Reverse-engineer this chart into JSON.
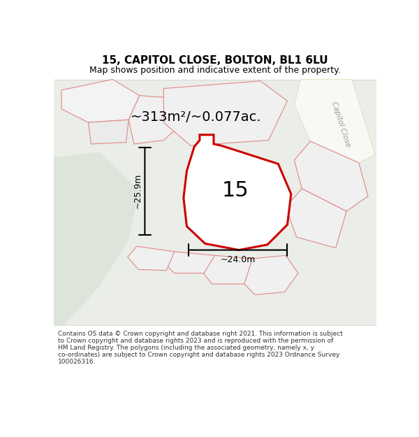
{
  "title_line1": "15, CAPITOL CLOSE, BOLTON, BL1 6LU",
  "title_line2": "Map shows position and indicative extent of the property.",
  "footer_lines": [
    "Contains OS data © Crown copyright and database right 2021. This information is subject",
    "to Crown copyright and database rights 2023 and is reproduced with the permission of",
    "HM Land Registry. The polygons (including the associated geometry, namely x, y",
    "co-ordinates) are subject to Crown copyright and database rights 2023 Ordnance Survey",
    "100026316."
  ],
  "area_label": "~313m²/~0.077ac.",
  "number_label": "15",
  "dim_height": "~25.9m",
  "dim_width": "~24.0m",
  "road_label": "Capitol Close",
  "map_bg": "#eaede8",
  "plot_outline": "#cc0000",
  "other_plot_outline": "#e08888",
  "road_label_color": "#999999"
}
